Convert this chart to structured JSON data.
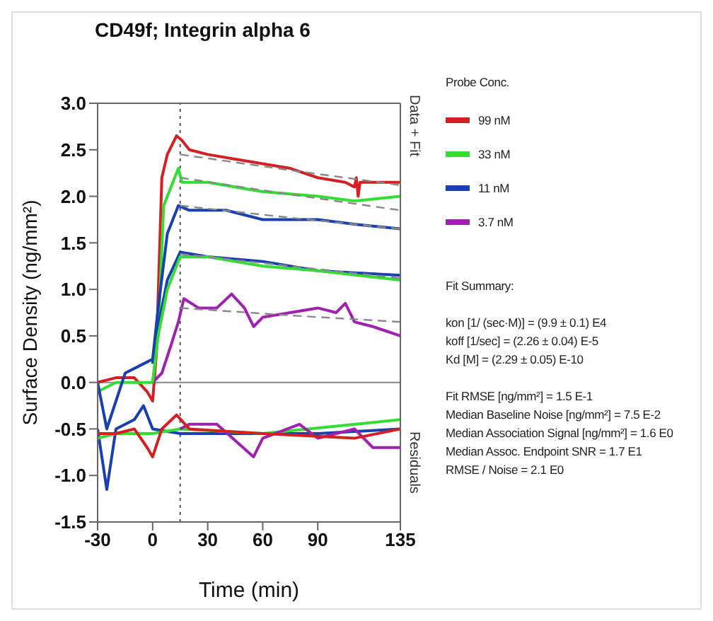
{
  "chart_data": {
    "type": "line",
    "title": "CD49f; Integrin alpha 6",
    "xlabel": "Time (min)",
    "ylabel": "Surface Density (ng/mm²)",
    "legend_title": "Probe Conc.",
    "legend": "right",
    "marker": "none",
    "xlim": [
      -30,
      135
    ],
    "xticks": [
      -30,
      0,
      30,
      60,
      90,
      135
    ],
    "ylim": [
      -1.5,
      3.0
    ],
    "yticks": [
      {
        "value": -1.5,
        "label": "-1.5"
      },
      {
        "value": -1,
        "label": "-1.0"
      },
      {
        "value": -0.5,
        "label": "-0.5"
      },
      {
        "value": 0,
        "label": "0.0"
      },
      {
        "value": 0.5,
        "label": "0.5"
      },
      {
        "value": 1,
        "label": "1.0"
      },
      {
        "value": 1.5,
        "label": "1.5"
      },
      {
        "value": 2,
        "label": "2.0"
      },
      {
        "value": 2.5,
        "label": "2.5"
      },
      {
        "value": 3,
        "label": "3.0"
      }
    ],
    "ref_lines": [
      {
        "axis": "x",
        "value": 15,
        "color": "#555555",
        "line_style": "dotted"
      },
      {
        "axis": "y",
        "value": 0,
        "color": "#888888",
        "line_style": "solid"
      }
    ],
    "series": [
      {
        "name": "99 nM",
        "color": "#d42020",
        "x": [
          -30,
          -20,
          -10,
          -3,
          0,
          2,
          5,
          8,
          13,
          16,
          20,
          30,
          45,
          60,
          75,
          90,
          105,
          110,
          111,
          112,
          113,
          120,
          135
        ],
        "values": [
          0,
          0.05,
          0.05,
          -0.1,
          -0.2,
          0.3,
          2.2,
          2.45,
          2.65,
          2.6,
          2.5,
          2.45,
          2.4,
          2.35,
          2.3,
          2.2,
          2.15,
          2.1,
          2.2,
          2.0,
          2.15,
          2.15,
          2.15
        ]
      },
      {
        "name": "33 nM",
        "color": "#33dd33",
        "x": [
          -30,
          -20,
          0,
          3,
          6,
          10,
          14,
          16,
          30,
          60,
          90,
          110,
          135
        ],
        "values": [
          -0.1,
          0,
          0,
          0.5,
          1.9,
          2.1,
          2.3,
          2.15,
          2.15,
          2.05,
          2.0,
          1.95,
          2.0
        ]
      },
      {
        "name": "11 nM",
        "color": "#1a3fb0",
        "x": [
          -30,
          -25,
          -15,
          -5,
          0,
          3,
          8,
          14,
          20,
          40,
          60,
          90,
          110,
          135
        ],
        "values": [
          0,
          -0.5,
          0.1,
          0.2,
          0.25,
          0.8,
          1.6,
          1.9,
          1.85,
          1.85,
          1.75,
          1.75,
          1.7,
          1.65
        ]
      },
      {
        "name": "3.7 nM",
        "color": "#a020b0",
        "x": [
          0,
          5,
          10,
          14,
          17,
          25,
          35,
          43,
          50,
          55,
          60,
          75,
          90,
          100,
          105,
          110,
          120,
          135
        ],
        "values": [
          0,
          0.1,
          0.4,
          0.65,
          0.9,
          0.8,
          0.8,
          0.95,
          0.8,
          0.6,
          0.7,
          0.75,
          0.8,
          0.75,
          0.85,
          0.65,
          0.6,
          0.5
        ]
      },
      {
        "color": "#1a3fb0",
        "x": [
          0,
          3,
          8,
          15,
          30,
          60,
          90,
          135
        ],
        "values": [
          0.2,
          0.6,
          1.1,
          1.4,
          1.35,
          1.3,
          1.2,
          1.15
        ]
      },
      {
        "color": "#33dd33",
        "x": [
          0,
          3,
          8,
          15,
          30,
          60,
          90,
          135
        ],
        "values": [
          0,
          0.5,
          1.0,
          1.35,
          1.35,
          1.25,
          1.2,
          1.1
        ]
      },
      {
        "color": "#888888",
        "line_style": "dashed",
        "x": [
          15,
          75,
          135
        ],
        "values": [
          2.45,
          2.28,
          2.12
        ]
      },
      {
        "color": "#888888",
        "line_style": "dashed",
        "x": [
          15,
          75,
          135
        ],
        "values": [
          2.2,
          2.02,
          1.85
        ]
      },
      {
        "color": "#888888",
        "line_style": "dashed",
        "x": [
          15,
          75,
          135
        ],
        "values": [
          1.9,
          1.77,
          1.65
        ]
      },
      {
        "color": "#888888",
        "line_style": "dashed",
        "x": [
          15,
          75,
          135
        ],
        "values": [
          1.38,
          1.25,
          1.12
        ]
      },
      {
        "color": "#888888",
        "line_style": "dashed",
        "x": [
          15,
          75,
          135
        ],
        "values": [
          0.8,
          0.72,
          0.65
        ]
      },
      {
        "color": "#1a3fb0",
        "x": [
          -30,
          -25,
          -20,
          -10,
          -5,
          0,
          15,
          30,
          60,
          90,
          135
        ],
        "values": [
          -0.5,
          -1.15,
          -0.5,
          -0.4,
          -0.25,
          -0.5,
          -0.55,
          -0.55,
          -0.55,
          -0.55,
          -0.5
        ]
      },
      {
        "color": "#33dd33",
        "x": [
          -30,
          -20,
          0,
          15,
          60,
          135
        ],
        "values": [
          -0.6,
          -0.55,
          -0.55,
          -0.5,
          -0.55,
          -0.4
        ]
      },
      {
        "color": "#a020b0",
        "x": [
          15,
          20,
          35,
          55,
          60,
          80,
          90,
          110,
          120,
          135
        ],
        "values": [
          -0.5,
          -0.45,
          -0.45,
          -0.8,
          -0.6,
          -0.45,
          -0.6,
          -0.5,
          -0.7,
          -0.7
        ]
      },
      {
        "color": "#d42020",
        "x": [
          -30,
          -20,
          -10,
          -3,
          0,
          5,
          13,
          20,
          60,
          110,
          135
        ],
        "values": [
          -0.55,
          -0.55,
          -0.5,
          -0.7,
          -0.8,
          -0.5,
          -0.35,
          -0.5,
          -0.55,
          -0.6,
          -0.5
        ]
      }
    ],
    "annotations": [
      "Data + Fit",
      "Residuals",
      "Fit Summary:",
      "kon  [1/ (sec·M)]  =  (9.9 ± 0.1) E4",
      "koff  [1/sec]  =  (2.26 ± 0.04) E-5",
      "Kd  [M]  =  (2.29 ± 0.05) E-10",
      "Fit RMSE [ng/mm²]  =  1.5 E-1",
      "Median Baseline Noise [ng/mm²]  =  7.5 E-2",
      "Median Association Signal [ng/mm²]  =  1.6 E0",
      "Median Assoc. Endpoint SNR  =  1.7 E1",
      "RMSE / Noise  =  2.1 E0"
    ]
  }
}
